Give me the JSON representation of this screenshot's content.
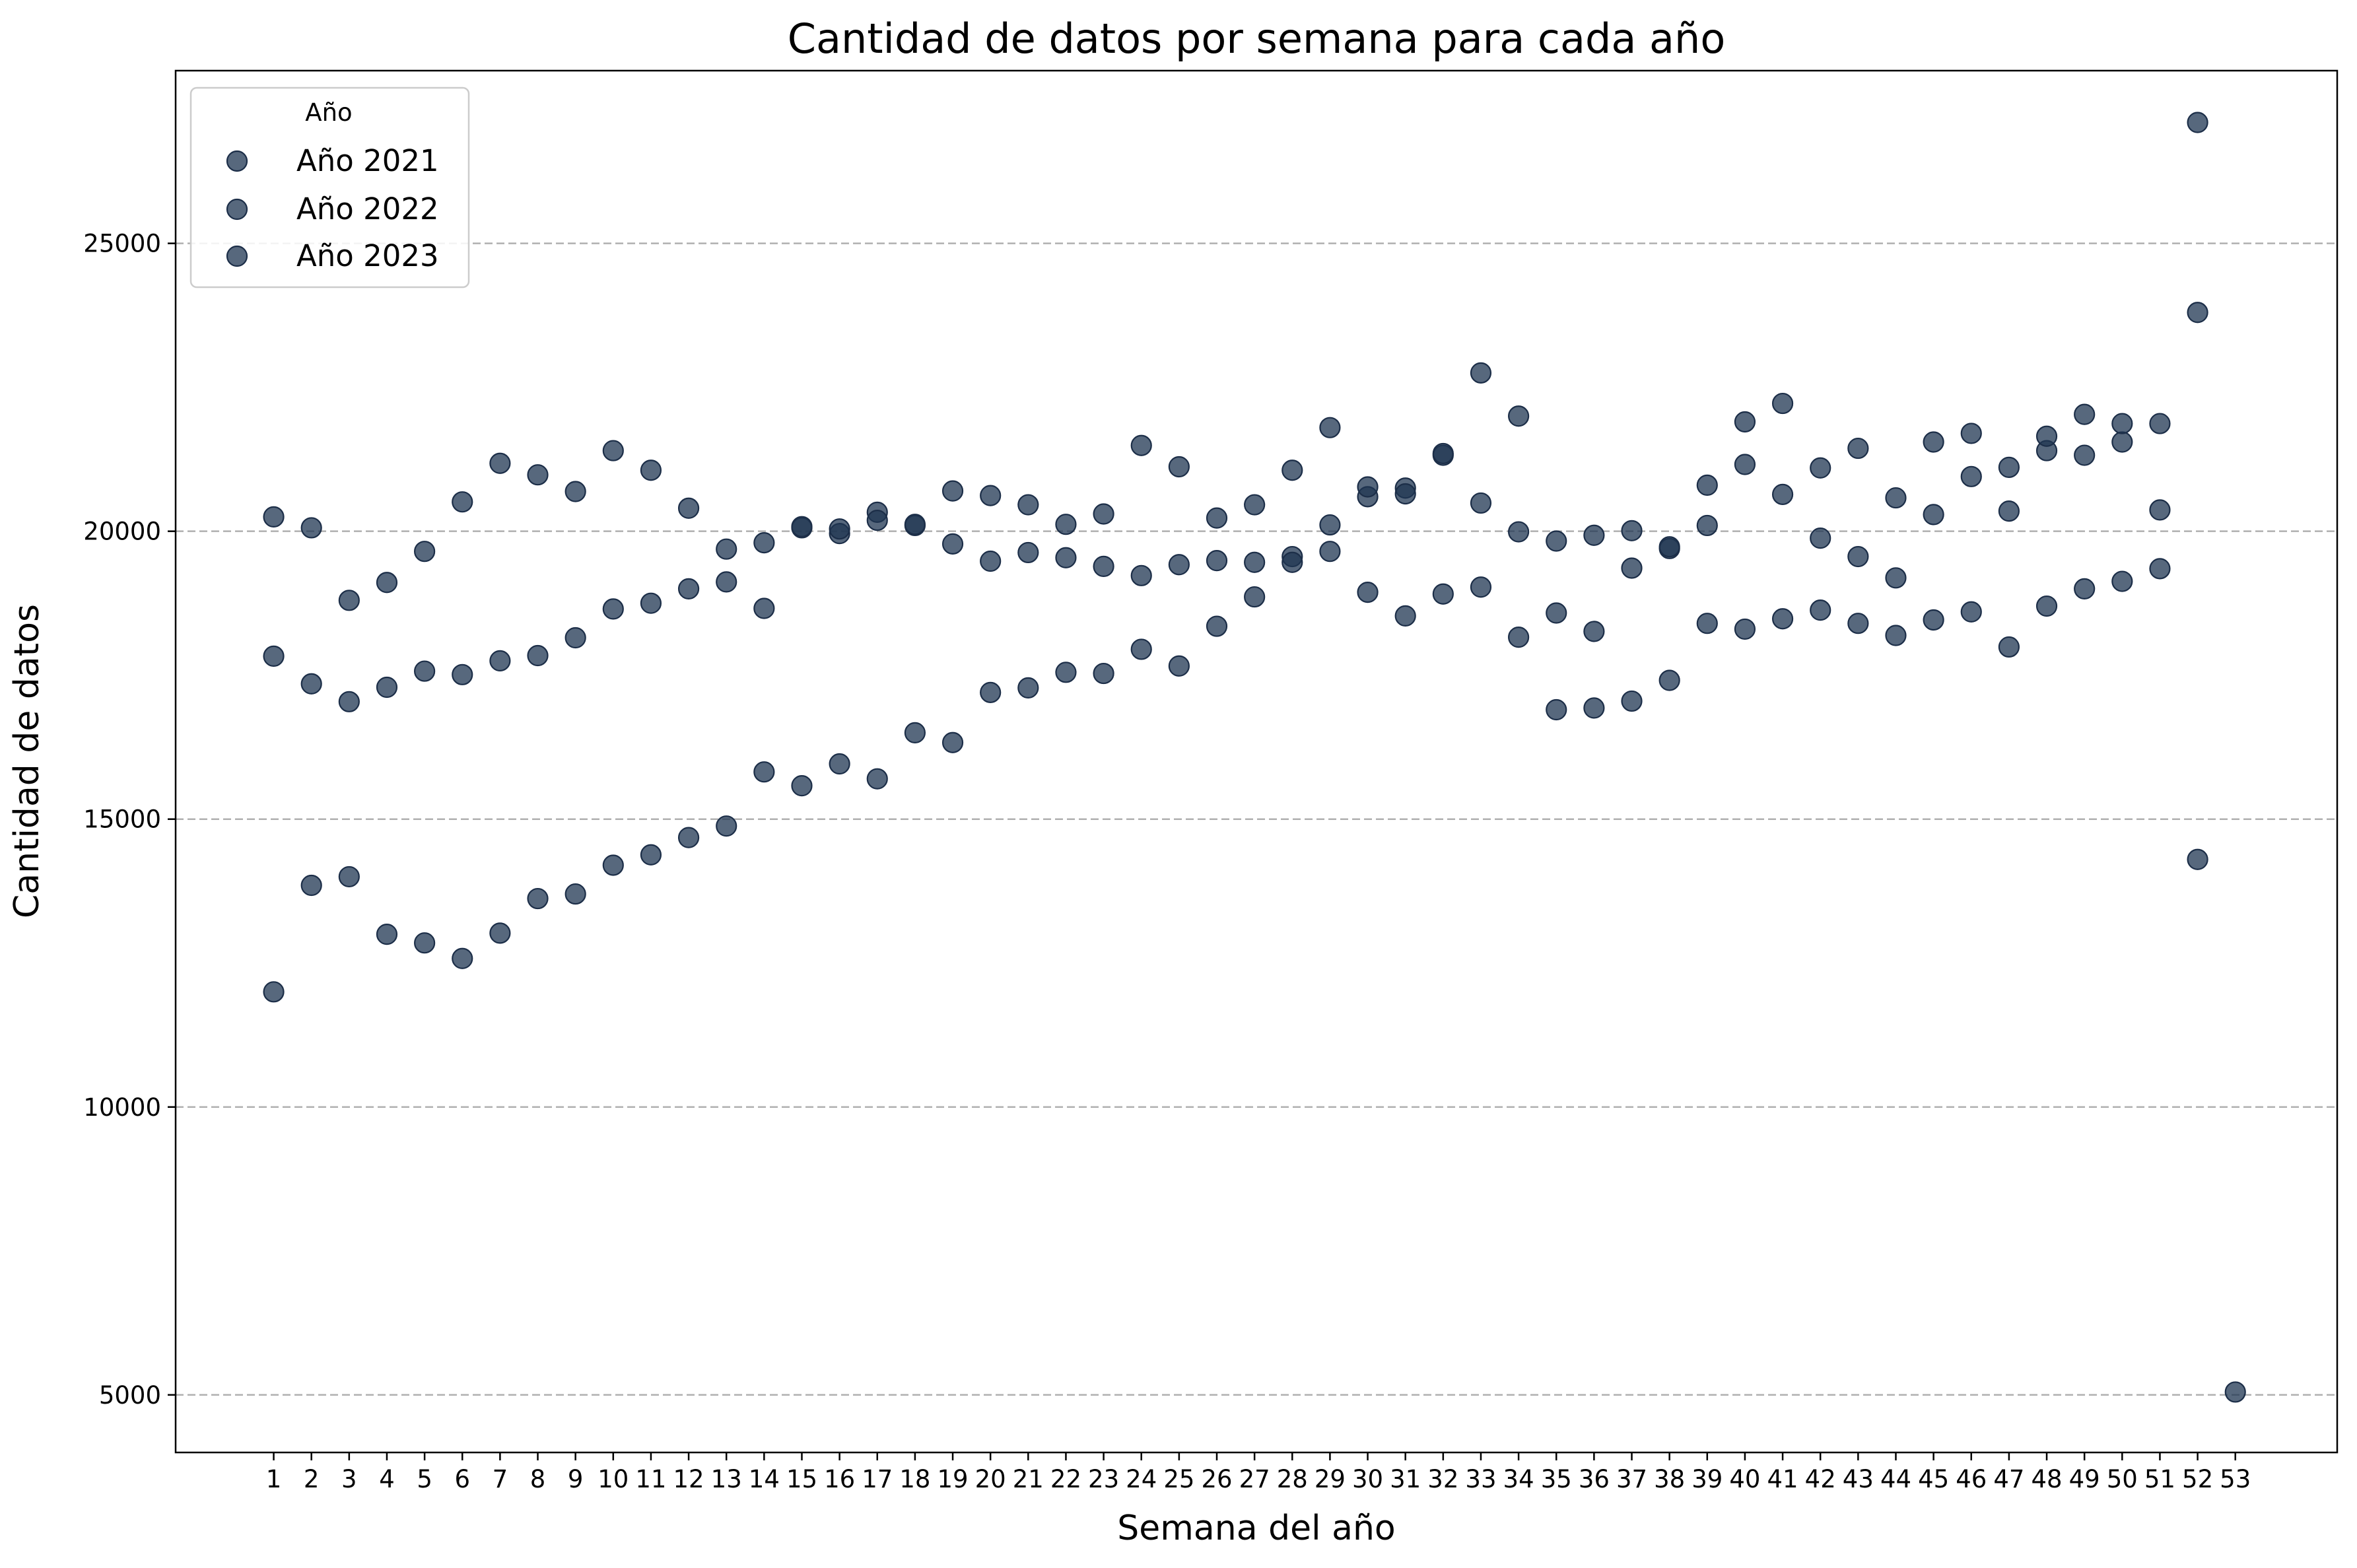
{
  "chart_data": {
    "type": "scatter",
    "title": "Cantidad de datos por semana para cada año",
    "xlabel": "Semana del año",
    "ylabel": "Cantidad de datos",
    "x": [
      1,
      2,
      3,
      4,
      5,
      6,
      7,
      8,
      9,
      10,
      11,
      12,
      13,
      14,
      15,
      16,
      17,
      18,
      19,
      20,
      21,
      22,
      23,
      24,
      25,
      26,
      27,
      28,
      29,
      30,
      31,
      32,
      33,
      34,
      35,
      36,
      37,
      38,
      39,
      40,
      41,
      42,
      43,
      44,
      45,
      46,
      47,
      48,
      49,
      50,
      51,
      52,
      53
    ],
    "xlim": [
      -1.6,
      55.7
    ],
    "ylim": [
      4000,
      28000
    ],
    "yticks": [
      5000,
      10000,
      15000,
      20000,
      25000
    ],
    "grid": "y-dashed",
    "marker_color": "#1f3552",
    "marker_alpha": 0.75,
    "legend": {
      "title": "Año",
      "position": "top-left"
    },
    "series": [
      {
        "name": "Año 2021",
        "values": [
          12000,
          13850,
          14000,
          13000,
          12850,
          12580,
          13020,
          13620,
          13700,
          14200,
          14380,
          14680,
          14880,
          15820,
          15580,
          15960,
          15700,
          16500,
          16330,
          17200,
          17280,
          17550,
          17530,
          17950,
          17660,
          18350,
          18860,
          19560,
          19650,
          20600,
          20750,
          21320,
          22750,
          22000,
          16900,
          16930,
          17050,
          17410,
          18400,
          18300,
          18480,
          18630,
          18400,
          18190,
          18460,
          18600,
          17990,
          18700,
          19000,
          19130,
          19350,
          23800,
          5050
        ]
      },
      {
        "name": "Año 2022",
        "values": [
          17830,
          17350,
          17040,
          17290,
          17570,
          17510,
          17750,
          17840,
          18150,
          18650,
          18750,
          19000,
          19120,
          18660,
          20060,
          19960,
          20330,
          20100,
          20700,
          20620,
          20460,
          20120,
          20300,
          19230,
          19420,
          20230,
          20460,
          21060,
          20110,
          18940,
          18530,
          18910,
          19030,
          18160,
          18580,
          18260,
          19360,
          19700,
          20100,
          21900,
          22220,
          21100,
          19560,
          19190,
          20290,
          20950,
          21110,
          21400,
          22030,
          21550,
          21870,
          27100,
          null
        ]
      },
      {
        "name": "Año 2023",
        "values": [
          20250,
          20060,
          18800,
          19110,
          19650,
          20510,
          21180,
          20980,
          20690,
          21400,
          21060,
          20400,
          19690,
          19800,
          20080,
          20040,
          20190,
          20120,
          19780,
          19480,
          19630,
          19540,
          19390,
          21490,
          21120,
          19490,
          19460,
          19460,
          21800,
          20770,
          20650,
          21350,
          20490,
          19990,
          19830,
          19930,
          20010,
          19730,
          20800,
          21160,
          20640,
          19880,
          21440,
          20580,
          21550,
          21700,
          20350,
          21650,
          21320,
          21870,
          20370,
          14300,
          null
        ]
      }
    ]
  }
}
